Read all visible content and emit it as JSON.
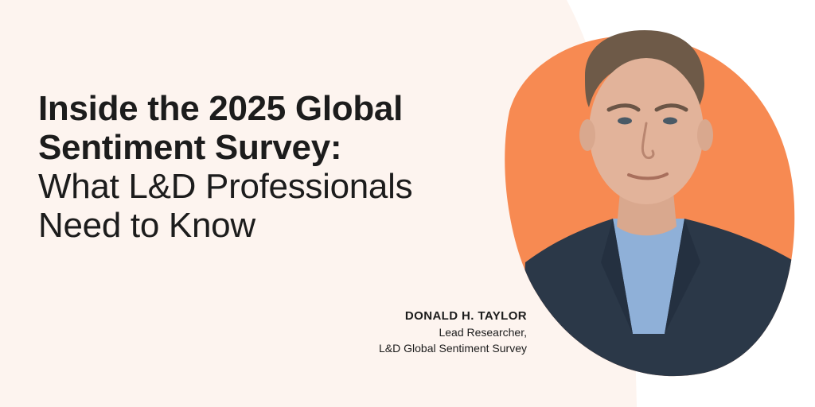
{
  "colors": {
    "background_beige": "#fdf4ef",
    "accent_orange": "#f78a52",
    "suit_navy": "#2b3848",
    "shirt_blue": "#8fb0d8",
    "text_dark": "#1c1c1c"
  },
  "headline": {
    "line1": "Inside the 2025 Global",
    "line2": "Sentiment Survey:",
    "line3": "What L&D Professionals",
    "line4": "Need to Know"
  },
  "byline": {
    "name": "DONALD H. TAYLOR",
    "role_line1": "Lead Researcher,",
    "role_line2": "L&D Global Sentiment Survey"
  },
  "portrait": {
    "icon": "person-portrait-icon"
  }
}
